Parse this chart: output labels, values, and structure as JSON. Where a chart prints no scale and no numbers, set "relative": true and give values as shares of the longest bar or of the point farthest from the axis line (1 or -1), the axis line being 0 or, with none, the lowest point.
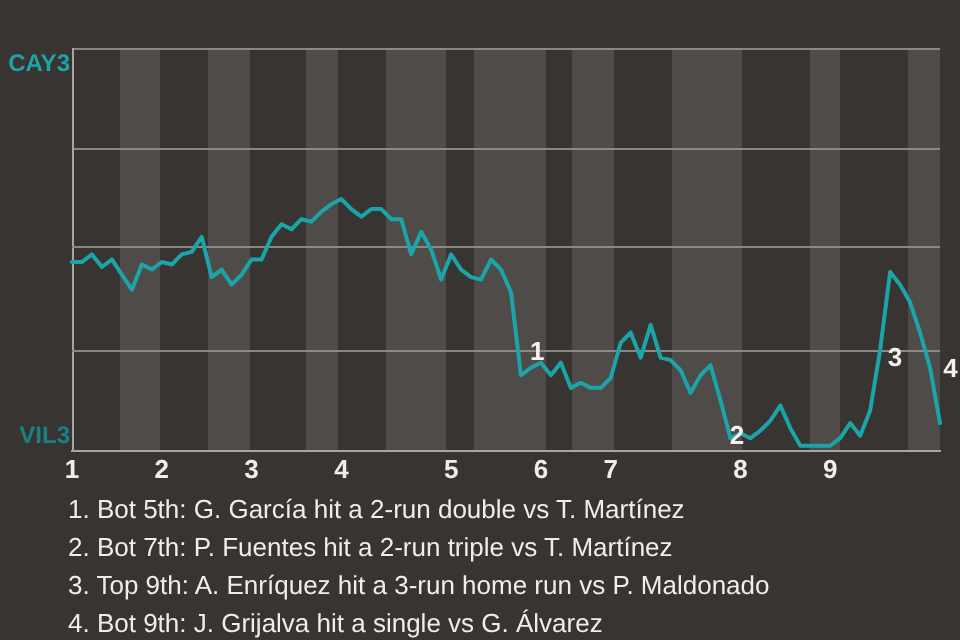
{
  "chart_data": {
    "type": "line",
    "relative": true,
    "categories": [
      "1",
      null,
      null,
      null,
      null,
      null,
      null,
      null,
      null,
      "2",
      null,
      null,
      null,
      null,
      null,
      null,
      null,
      null,
      "3",
      null,
      null,
      null,
      null,
      null,
      null,
      null,
      null,
      "4",
      null,
      null,
      null,
      null,
      null,
      null,
      null,
      null,
      null,
      null,
      "5",
      null,
      null,
      null,
      null,
      null,
      null,
      null,
      null,
      "6",
      null,
      null,
      null,
      null,
      null,
      null,
      "7",
      null,
      null,
      null,
      null,
      null,
      null,
      null,
      null,
      null,
      null,
      null,
      null,
      "8",
      null,
      null,
      null,
      null,
      null,
      null,
      null,
      null,
      "9",
      null,
      null,
      null,
      null,
      null,
      null,
      null,
      null,
      null,
      null,
      null
    ],
    "series": [
      {
        "color": "#1ba5a9",
        "values": [
          0.75,
          0.75,
          0.78,
          0.73,
          0.76,
          0.7,
          0.64,
          0.74,
          0.72,
          0.75,
          0.74,
          0.78,
          0.79,
          0.85,
          0.69,
          0.72,
          0.66,
          0.7,
          0.76,
          0.76,
          0.85,
          0.9,
          0.88,
          0.92,
          0.91,
          0.95,
          0.98,
          1,
          0.96,
          0.93,
          0.96,
          0.96,
          0.92,
          0.92,
          0.78,
          0.87,
          0.8,
          0.68,
          0.78,
          0.72,
          0.69,
          0.68,
          0.76,
          0.72,
          0.63,
          0.3,
          0.33,
          0.35,
          0.3,
          0.35,
          0.25,
          0.27,
          0.25,
          0.25,
          0.29,
          0.43,
          0.47,
          0.37,
          0.5,
          0.37,
          0.36,
          0.32,
          0.23,
          0.3,
          0.34,
          0.2,
          0.05,
          0.07,
          0.05,
          0.08,
          0.12,
          0.18,
          0.09,
          0.02,
          0.02,
          0.02,
          0.02,
          0.05,
          0.11,
          0.06,
          0.16,
          0.4,
          0.71,
          0.66,
          0.59,
          0.47,
          0.33,
          0.11
        ]
      }
    ],
    "ref_lines": [
      {
        "axis": "y",
        "value": 0.81,
        "color": "#8a8785"
      },
      {
        "axis": "y",
        "value": 0.4,
        "color": "#8a8785"
      }
    ],
    "legend": false,
    "marker": "none",
    "line_style": "solid",
    "annotations": [
      "CAY3",
      "VIL3",
      "1",
      "2",
      "3",
      "4",
      "1. Bot 5th: G. García hit a 2-run double vs T. Martínez",
      "2. Bot 7th: P. Fuentes hit a 2-run triple vs T. Martínez",
      "3. Top 9th: A. Enríquez hit a 3-run home run vs P. Maldonado",
      "4. Bot 9th: J. Grijalva hit a single vs G. Álvarez"
    ]
  }
}
